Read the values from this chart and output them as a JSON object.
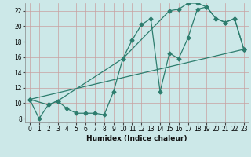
{
  "xlabel": "Humidex (Indice chaleur)",
  "bg_color": "#cce8e8",
  "grid_color": "#c8a0a0",
  "line_color": "#2d7d6e",
  "xlim": [
    -0.5,
    23.5
  ],
  "ylim": [
    7.5,
    23.0
  ],
  "xticks": [
    0,
    1,
    2,
    3,
    4,
    5,
    6,
    7,
    8,
    9,
    10,
    11,
    12,
    13,
    14,
    15,
    16,
    17,
    18,
    19,
    20,
    21,
    22,
    23
  ],
  "yticks": [
    8,
    10,
    12,
    14,
    16,
    18,
    20,
    22
  ],
  "line1_x": [
    0,
    1,
    2,
    3,
    4,
    5,
    6,
    7,
    8,
    9,
    10,
    11,
    12,
    13,
    14,
    15,
    16,
    17,
    18,
    19,
    20,
    21,
    22,
    23
  ],
  "line1_y": [
    10.5,
    8.0,
    9.8,
    10.3,
    9.3,
    8.7,
    8.7,
    8.7,
    8.5,
    11.5,
    15.8,
    18.2,
    20.2,
    21.0,
    11.5,
    16.5,
    15.8,
    18.5,
    22.2,
    22.5,
    21.0,
    20.5,
    21.0,
    17.0
  ],
  "line2_x": [
    0,
    2,
    3,
    10,
    15,
    16,
    17,
    18,
    19,
    20,
    21,
    22,
    23
  ],
  "line2_y": [
    10.5,
    9.8,
    10.3,
    15.8,
    22.0,
    22.2,
    23.0,
    23.0,
    22.5,
    21.0,
    20.5,
    21.0,
    17.0
  ],
  "line3_x": [
    0,
    23
  ],
  "line3_y": [
    10.5,
    17.0
  ]
}
